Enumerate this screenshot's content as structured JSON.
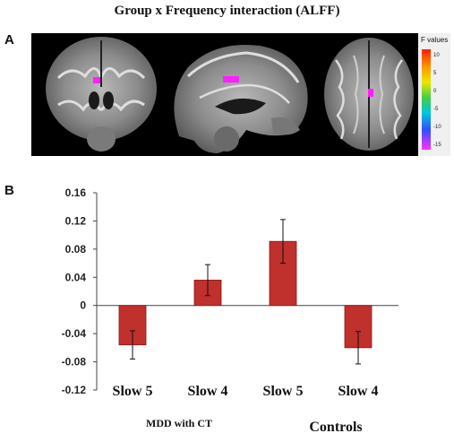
{
  "figure": {
    "title": "Group x Frequency interaction (ALFF)",
    "panel_a_label": "A",
    "panel_b_label": "B"
  },
  "colorbar": {
    "title": "F values",
    "ticks": [
      "10",
      "5",
      "0",
      "-5",
      "-10",
      "-15"
    ]
  },
  "chart_data": {
    "type": "bar",
    "categories": [
      "Slow 5",
      "Slow 4",
      "Slow 5",
      "Slow 4"
    ],
    "groups": [
      {
        "label": "MDD with CT",
        "categories": [
          0,
          1
        ]
      },
      {
        "label": "Controls",
        "categories": [
          2,
          3
        ]
      }
    ],
    "series": [
      {
        "values": [
          -0.056,
          0.036,
          0.091,
          -0.06
        ],
        "errors": [
          0.02,
          0.022,
          0.031,
          0.023
        ]
      }
    ],
    "ylim": [
      -0.12,
      0.16
    ],
    "yticks": [
      0.16,
      0.12,
      0.08,
      0.04,
      0,
      -0.04,
      -0.08,
      -0.12
    ],
    "ytick_labels": [
      "0.16",
      "0.12",
      "0.08",
      "0.04",
      "0",
      "-0.04",
      "-0.08",
      "-0.12"
    ],
    "bar_color": "#c0302c",
    "grid": false,
    "title": "",
    "xlabel": "",
    "ylabel": ""
  }
}
